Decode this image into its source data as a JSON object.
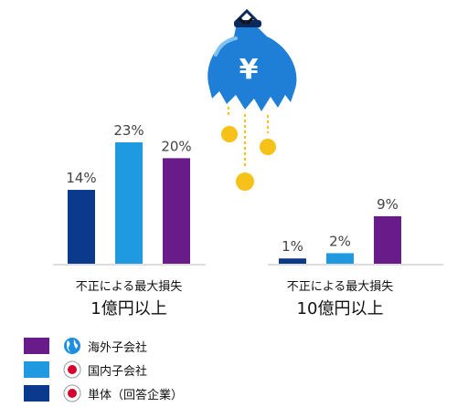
{
  "chart_data": {
    "type": "bar",
    "groups": [
      {
        "label_line1": "不正による最大損失",
        "label_line2": "1億円以上"
      },
      {
        "label_line1": "不正による最大損失",
        "label_line2": "10億円以上"
      }
    ],
    "series": [
      {
        "name": "単体（回答企業）",
        "color": "#0b3a8c",
        "values": [
          14,
          1
        ],
        "labels": [
          "14%",
          "1%"
        ]
      },
      {
        "name": "国内子会社",
        "color": "#1f9ae0",
        "values": [
          23,
          2
        ],
        "labels": [
          "23%",
          "2%"
        ]
      },
      {
        "name": "海外子会社",
        "color": "#6a1b8a",
        "values": [
          20,
          9
        ],
        "labels": [
          "20%",
          "9%"
        ]
      }
    ],
    "ylim": [
      0,
      25
    ],
    "grid": false,
    "legend_position": "bottom-left"
  },
  "legend": [
    {
      "label": "海外子会社",
      "color": "#6a1b8a",
      "icon": "globe-icon"
    },
    {
      "label": "国内子会社",
      "color": "#1f9ae0",
      "icon": "japan-flag-icon"
    },
    {
      "label": "単体（回答企業）",
      "color": "#0b3a8c",
      "icon": "japan-flag-icon"
    }
  ],
  "illustration": {
    "icon": "money-bag-icon",
    "symbol": "¥"
  }
}
